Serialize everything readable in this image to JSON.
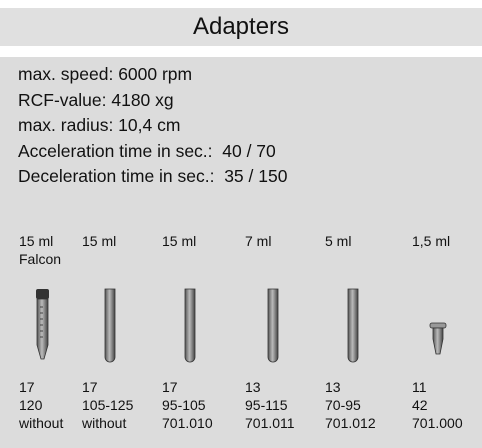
{
  "header": {
    "title": "Adapters"
  },
  "specs": [
    "max. speed: 6000 rpm",
    "RCF-value: 4180 xg",
    "max. radius: 10,4 cm",
    "Acceleration time in sec.:  40 / 70",
    "Deceleration time in sec.:  35 / 150"
  ],
  "adapters": [
    {
      "volume": "15 ml",
      "type": "Falcon",
      "values": [
        "17",
        "120",
        "without"
      ]
    },
    {
      "volume": "15 ml",
      "values": [
        "17",
        "105-125",
        "without"
      ]
    },
    {
      "volume": "15 ml",
      "values": [
        "17",
        "95-105",
        "701.010"
      ]
    },
    {
      "volume": "7 ml",
      "values": [
        "13",
        "95-115",
        "701.011"
      ]
    },
    {
      "volume": "5 ml",
      "values": [
        "13",
        "70-95",
        "701.012"
      ]
    },
    {
      "volume": "1,5 ml",
      "values": [
        "11",
        "42",
        "701.000"
      ]
    }
  ]
}
